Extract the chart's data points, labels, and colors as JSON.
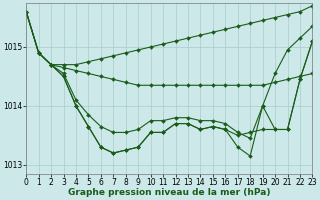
{
  "title": "Graphe pression niveau de la mer (hPa)",
  "bg_color": "#cce8e8",
  "grid_color": "#aacccc",
  "line_color": "#1a5c1a",
  "series": [
    {
      "x": [
        0,
        1,
        2,
        3,
        4,
        5,
        6,
        7,
        8,
        9,
        10,
        11,
        12,
        13,
        14,
        15,
        16,
        17,
        18,
        19,
        20,
        21,
        22,
        23
      ],
      "y": [
        1015.6,
        1014.9,
        1014.7,
        1014.7,
        1014.7,
        1014.75,
        1014.8,
        1014.85,
        1014.9,
        1014.95,
        1015.0,
        1015.05,
        1015.1,
        1015.15,
        1015.2,
        1015.25,
        1015.3,
        1015.35,
        1015.4,
        1015.45,
        1015.5,
        1015.55,
        1015.6,
        1015.7
      ]
    },
    {
      "x": [
        0,
        1,
        2,
        3,
        4,
        5,
        6,
        7,
        8,
        9,
        10,
        11,
        12,
        13,
        14,
        15,
        16,
        17,
        18,
        19,
        20,
        21,
        22,
        23
      ],
      "y": [
        1015.6,
        1014.9,
        1014.7,
        1014.65,
        1014.6,
        1014.55,
        1014.5,
        1014.45,
        1014.4,
        1014.35,
        1014.35,
        1014.35,
        1014.35,
        1014.35,
        1014.35,
        1014.35,
        1014.35,
        1014.35,
        1014.35,
        1014.35,
        1014.4,
        1014.45,
        1014.5,
        1014.55
      ]
    },
    {
      "x": [
        0,
        1,
        2,
        3,
        4,
        5,
        6,
        7,
        8,
        9,
        10,
        11,
        12,
        13,
        14,
        15,
        16,
        17,
        18,
        19,
        20,
        21,
        22,
        23
      ],
      "y": [
        1015.6,
        1014.9,
        1014.7,
        1014.55,
        1014.1,
        1013.85,
        1013.65,
        1013.55,
        1013.55,
        1013.6,
        1013.75,
        1013.75,
        1013.8,
        1013.8,
        1013.75,
        1013.75,
        1013.7,
        1013.55,
        1013.45,
        1014.0,
        1014.55,
        1014.95,
        1015.15,
        1015.35
      ]
    },
    {
      "x": [
        0,
        1,
        2,
        3,
        4,
        5,
        6,
        7,
        8,
        9,
        10,
        11,
        12,
        13,
        14,
        15,
        16,
        17,
        18,
        19,
        20,
        21,
        22,
        23
      ],
      "y": [
        1015.6,
        1014.9,
        1014.7,
        1014.5,
        1014.0,
        1013.65,
        1013.3,
        1013.2,
        1013.25,
        1013.3,
        1013.55,
        1013.55,
        1013.7,
        1013.7,
        1013.6,
        1013.65,
        1013.6,
        1013.5,
        1013.55,
        1013.6,
        1013.6,
        1013.6,
        1014.45,
        1015.1
      ]
    },
    {
      "x": [
        2,
        3,
        4,
        5,
        6,
        7,
        8,
        9,
        10,
        11,
        12,
        13,
        14,
        15,
        16,
        17,
        18,
        19,
        20,
        21,
        22,
        23
      ],
      "y": [
        1014.7,
        1014.5,
        1014.0,
        1013.65,
        1013.3,
        1013.2,
        1013.25,
        1013.3,
        1013.55,
        1013.55,
        1013.7,
        1013.7,
        1013.6,
        1013.65,
        1013.6,
        1013.3,
        1013.15,
        1014.0,
        1013.6,
        1013.6,
        1014.45,
        1015.1
      ]
    }
  ],
  "xlim": [
    0,
    23
  ],
  "ylim": [
    1012.85,
    1015.75
  ],
  "yticks": [
    1013,
    1014,
    1015
  ],
  "xticks": [
    0,
    1,
    2,
    3,
    4,
    5,
    6,
    7,
    8,
    9,
    10,
    11,
    12,
    13,
    14,
    15,
    16,
    17,
    18,
    19,
    20,
    21,
    22,
    23
  ],
  "tick_fontsize": 5.5,
  "title_fontsize": 6.5,
  "markersize": 2.0,
  "linewidth": 0.8
}
